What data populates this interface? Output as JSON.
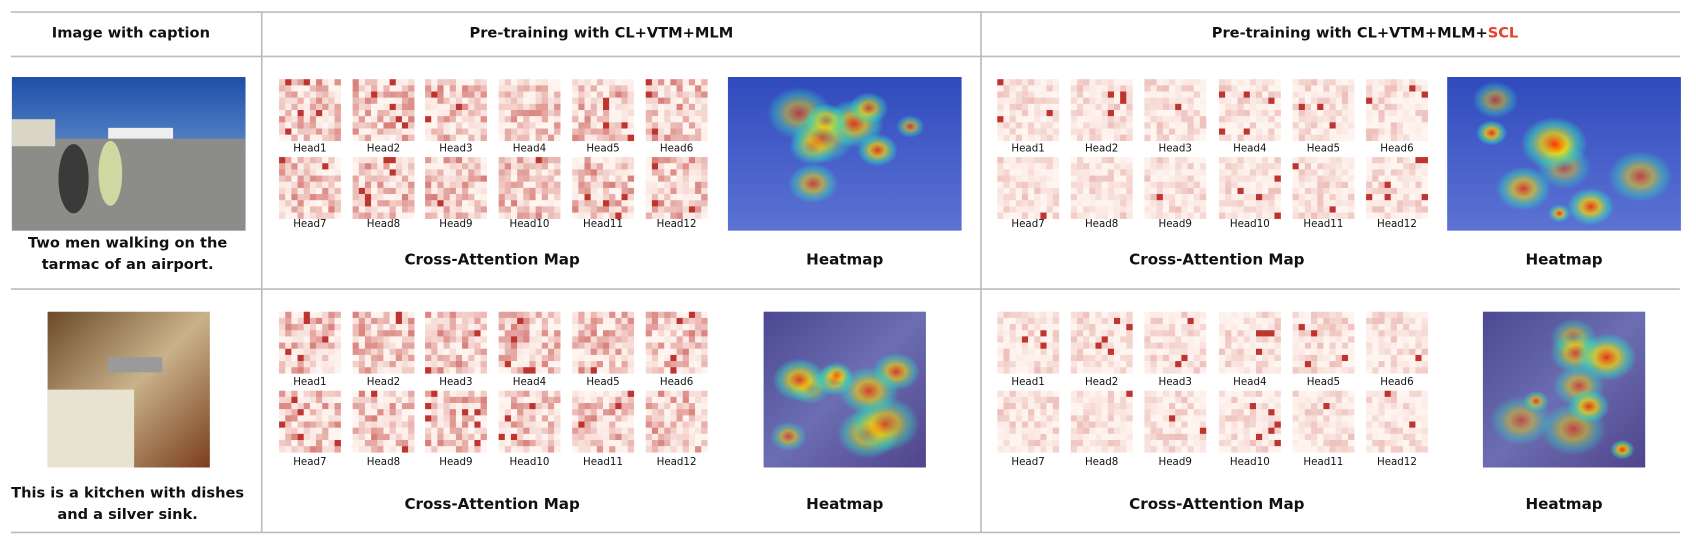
{
  "header": {
    "columns": [
      "Image with caption",
      "Pre-training with CL+VTM+MLM",
      {
        "text": "Pre-training with CL+VTM+MLM+",
        "highlight": "SCL"
      }
    ]
  },
  "rows": [
    {
      "caption_lines": [
        "Two men walking on the",
        "tarmac of an airport."
      ],
      "panels": [
        {
          "heads": [
            "Head1",
            "Head2",
            "Head3",
            "Head4",
            "Head5",
            "Head6",
            "Head7",
            "Head8",
            "Head9",
            "Head10",
            "Head11",
            "Head12"
          ],
          "map_label": "Cross-Attention Map",
          "heatmap_label": "Heatmap"
        },
        {
          "heads": [
            "Head1",
            "Head2",
            "Head3",
            "Head4",
            "Head5",
            "Head6",
            "Head7",
            "Head8",
            "Head9",
            "Head10",
            "Head11",
            "Head12"
          ],
          "map_label": "Cross-Attention Map",
          "heatmap_label": "Heatmap"
        }
      ]
    },
    {
      "caption_lines": [
        "This is a kitchen with dishes",
        "and a silver sink."
      ],
      "panels": [
        {
          "heads": [
            "Head1",
            "Head2",
            "Head3",
            "Head4",
            "Head5",
            "Head6",
            "Head7",
            "Head8",
            "Head9",
            "Head10",
            "Head11",
            "Head12"
          ],
          "map_label": "Cross-Attention Map",
          "heatmap_label": "Heatmap"
        },
        {
          "heads": [
            "Head1",
            "Head2",
            "Head3",
            "Head4",
            "Head5",
            "Head6",
            "Head7",
            "Head8",
            "Head9",
            "Head10",
            "Head11",
            "Head12"
          ],
          "map_label": "Cross-Attention Map",
          "heatmap_label": "Heatmap"
        }
      ]
    }
  ]
}
